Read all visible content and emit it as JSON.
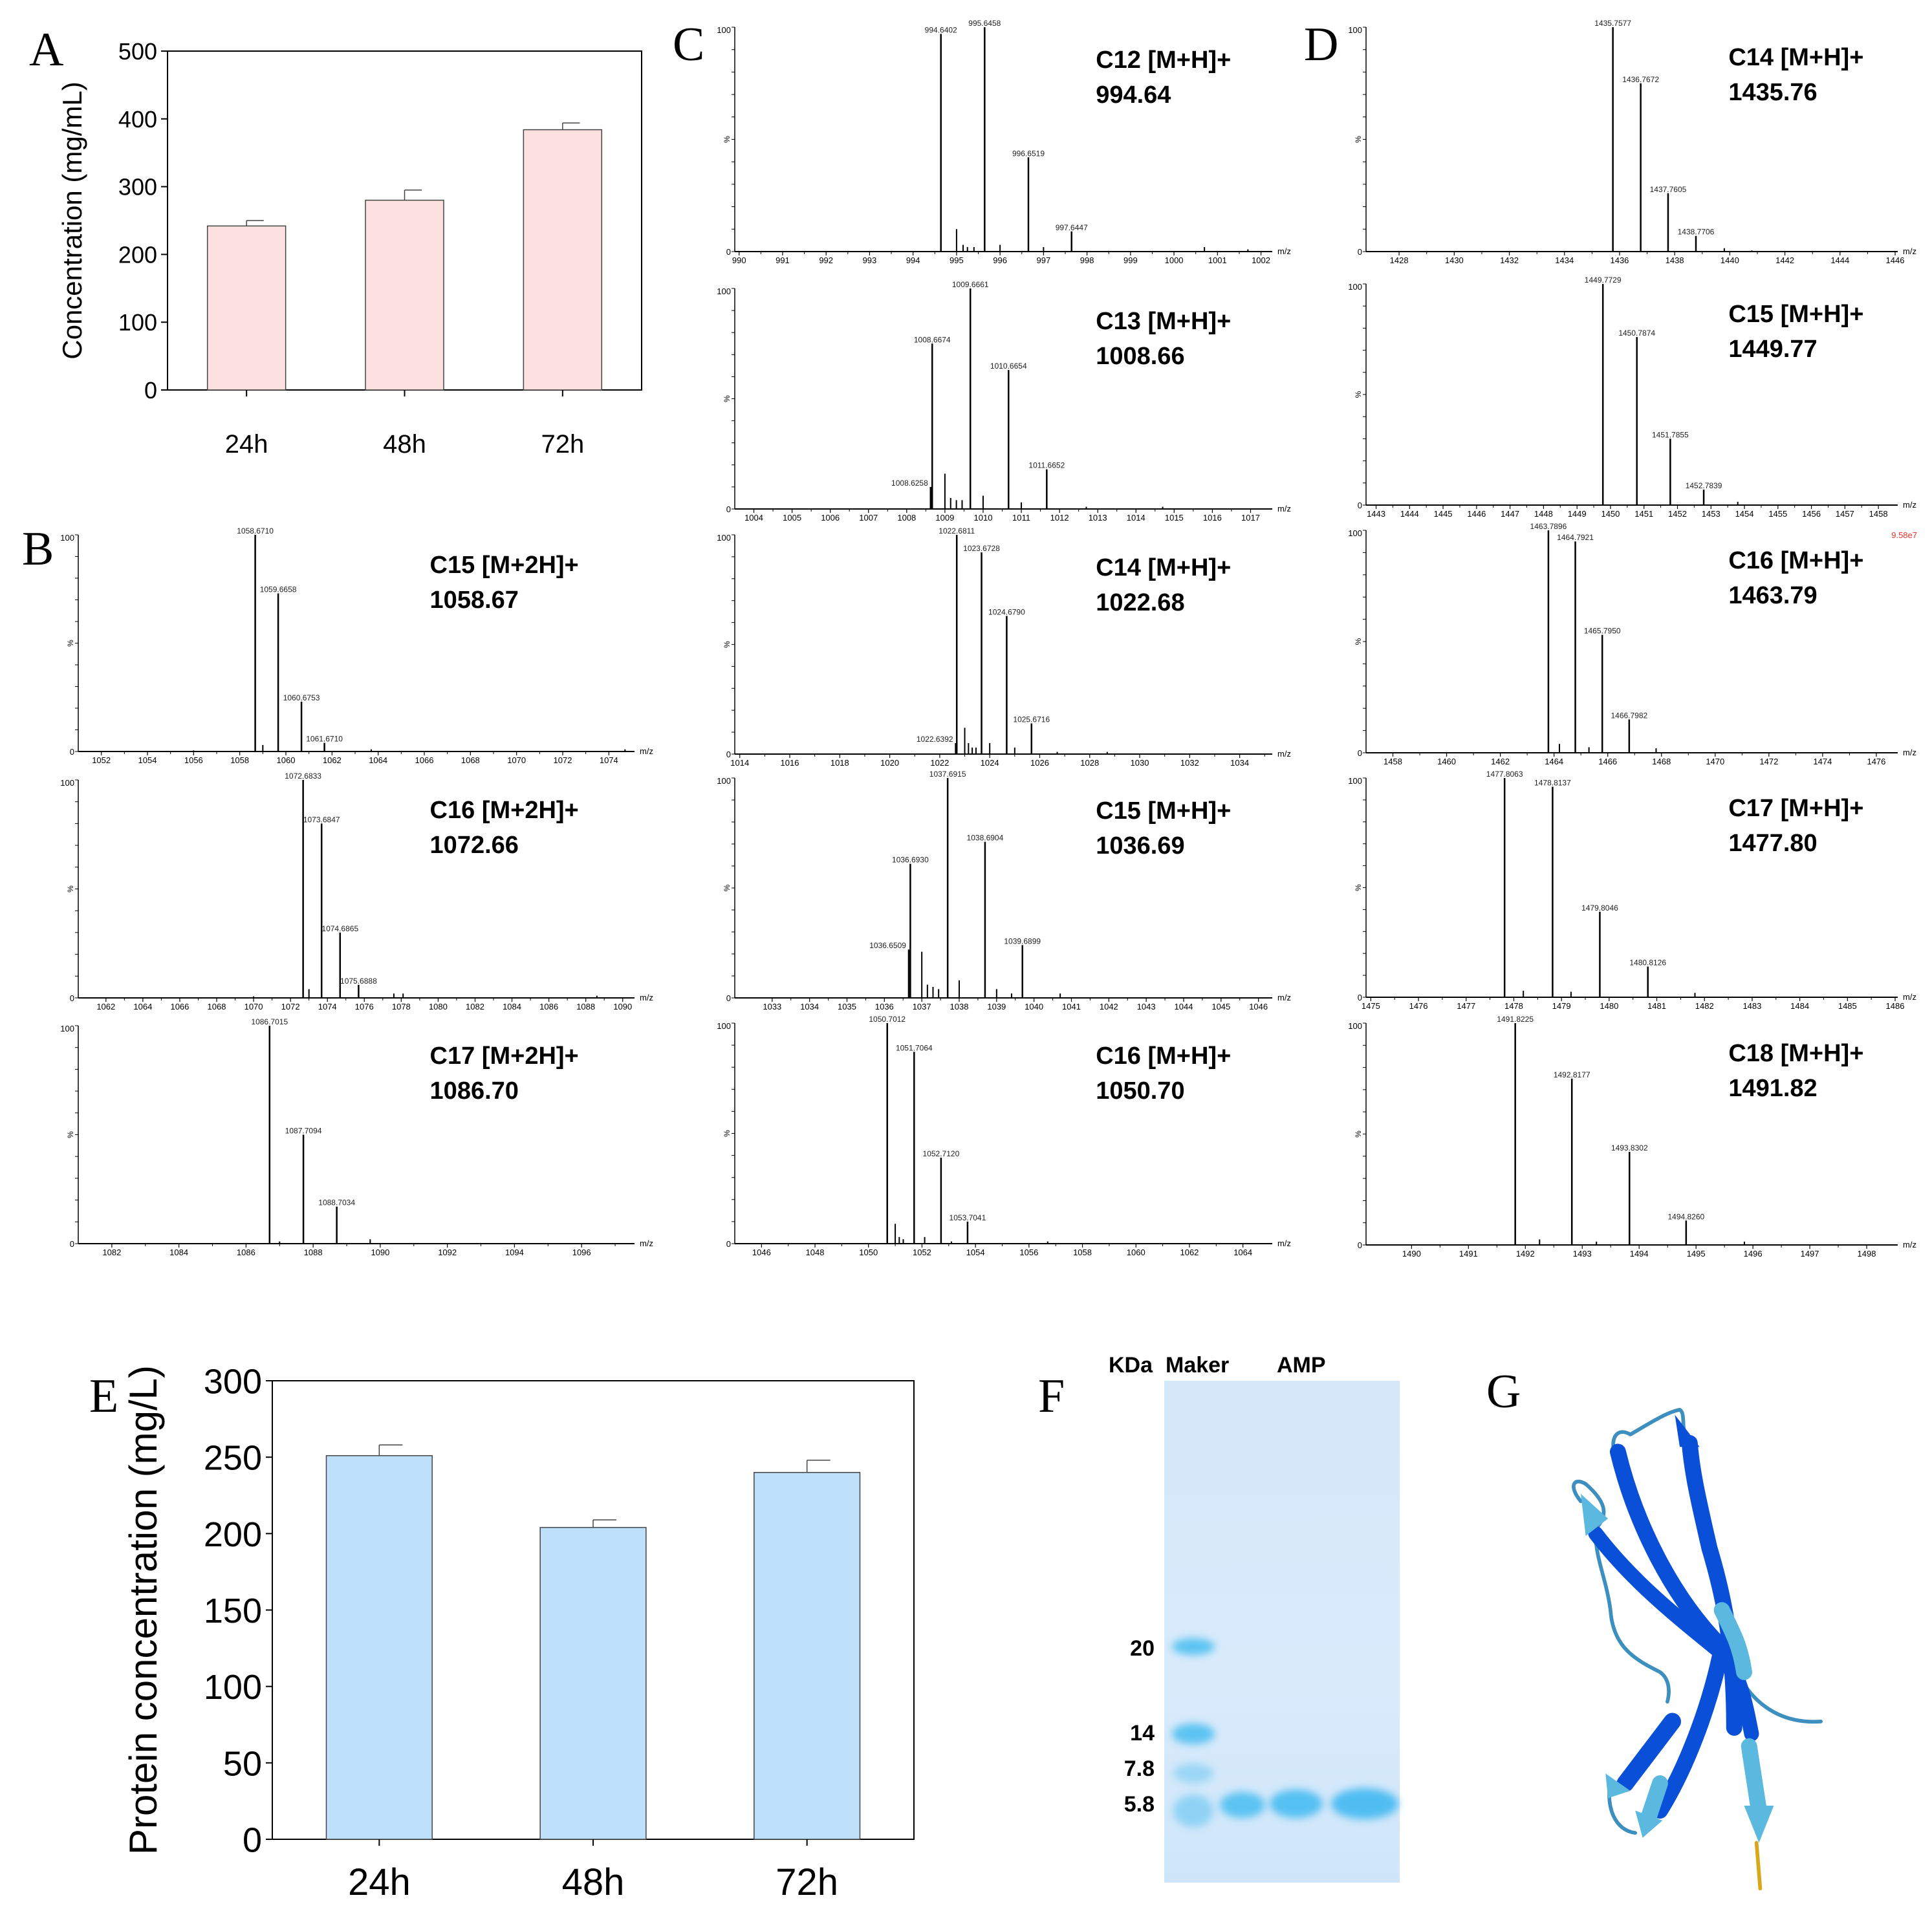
{
  "panel_labels": {
    "A": "A",
    "B": "B",
    "C": "C",
    "D": "D",
    "E": "E",
    "F": "F",
    "G": "G"
  },
  "gel": {
    "unit_label": "KDa",
    "lane_marker_label": "Maker",
    "lane_sample_label": "AMP",
    "marker_sizes": [
      "20",
      "14",
      "7.8",
      "5.8"
    ],
    "band_color": "#5cc3f2"
  },
  "structure": {
    "strand_color": "#0a4fd8",
    "strand_light_color": "#5bb8de",
    "coil_color": "#3d8fbf",
    "tail_color": "#d8a81a"
  },
  "chart_data": [
    {
      "panel": "A",
      "type": "bar",
      "title": "",
      "xlabel": "",
      "ylabel": "Concentration (mg/mL)",
      "categories": [
        "24h",
        "48h",
        "72h"
      ],
      "values": [
        242,
        280,
        384
      ],
      "errors": [
        8,
        15,
        10
      ],
      "ylim": [
        0,
        500
      ],
      "y_ticks": [
        "0",
        "100",
        "200",
        "300",
        "400",
        "500"
      ],
      "bar_color": "#fde0e0"
    },
    {
      "panel": "E",
      "type": "bar",
      "title": "",
      "xlabel": "",
      "ylabel": "Protein concentration (mg/L)",
      "categories": [
        "24h",
        "48h",
        "72h"
      ],
      "values": [
        251,
        204,
        240
      ],
      "errors": [
        7,
        5,
        8
      ],
      "ylim": [
        0,
        300
      ],
      "y_ticks": [
        "0",
        "50",
        "100",
        "150",
        "200",
        "250",
        "300"
      ],
      "bar_color": "#bfe0fb"
    },
    {
      "panel": "B",
      "type": "bar",
      "title": "C15 [M+2H]+",
      "value": "1058.67",
      "xlabel": "m/z",
      "ylabel": "%",
      "y_top": "100",
      "y_zero": "0",
      "xlim": [
        1051,
        1075
      ],
      "ylim": [
        0,
        100
      ],
      "x_ticks": [
        1052,
        1054,
        1056,
        1058,
        1060,
        1062,
        1064,
        1066,
        1068,
        1070,
        1072,
        1074
      ],
      "peaks": [
        {
          "mz": 1058.671,
          "intensity": 100,
          "label": "1058.6710"
        },
        {
          "mz": 1059.6658,
          "intensity": 73,
          "label": "1059.6658"
        },
        {
          "mz": 1060.6753,
          "intensity": 23,
          "label": "1060.6753"
        },
        {
          "mz": 1061.671,
          "intensity": 4,
          "label": "1061.6710"
        }
      ],
      "minor_peaks": [
        [
          1059.0,
          3
        ],
        [
          1063.7,
          1
        ],
        [
          1056.0,
          0.5
        ],
        [
          1074.7,
          1
        ]
      ]
    },
    {
      "panel": "B",
      "type": "bar",
      "title": "C16 [M+2H]+",
      "value": "1072.66",
      "xlabel": "m/z",
      "ylabel": "%",
      "y_top": "100",
      "y_zero": "0",
      "xlim": [
        1060.5,
        1090.5
      ],
      "ylim": [
        0,
        100
      ],
      "x_ticks": [
        1062,
        1064,
        1066,
        1068,
        1070,
        1072,
        1074,
        1076,
        1078,
        1080,
        1082,
        1084,
        1086,
        1088,
        1090
      ],
      "peaks": [
        {
          "mz": 1072.6833,
          "intensity": 100,
          "label": "1072.6833"
        },
        {
          "mz": 1073.6847,
          "intensity": 80,
          "label": "1073.6847"
        },
        {
          "mz": 1074.6865,
          "intensity": 30,
          "label": "1074.6865"
        },
        {
          "mz": 1075.6888,
          "intensity": 6,
          "label": "1075.6888"
        }
      ],
      "minor_peaks": [
        [
          1073.0,
          4
        ],
        [
          1077.6,
          2
        ],
        [
          1078.1,
          2
        ],
        [
          1070.0,
          0.7
        ],
        [
          1088.6,
          1
        ]
      ]
    },
    {
      "panel": "B",
      "type": "bar",
      "title": "C17 [M+2H]+",
      "value": "1086.70",
      "xlabel": "m/z",
      "ylabel": "%",
      "y_top": "100",
      "y_zero": "0",
      "xlim": [
        1081,
        1097.5
      ],
      "ylim": [
        0,
        100
      ],
      "x_ticks": [
        1082,
        1084,
        1086,
        1088,
        1090,
        1092,
        1094,
        1096
      ],
      "peaks": [
        {
          "mz": 1086.7015,
          "intensity": 100,
          "label": "1086.7015"
        },
        {
          "mz": 1087.7094,
          "intensity": 50,
          "label": "1087.7094"
        },
        {
          "mz": 1088.7034,
          "intensity": 17,
          "label": "1088.7034"
        }
      ],
      "minor_peaks": [
        [
          1089.7,
          2
        ],
        [
          1087.0,
          1
        ]
      ]
    },
    {
      "panel": "C",
      "type": "bar",
      "title": "C12 [M+H]+",
      "value": "994.64",
      "xlabel": "m/z",
      "ylabel": "%",
      "y_top": "100",
      "y_zero": "0",
      "xlim": [
        989.9,
        1002.2
      ],
      "ylim": [
        0,
        100
      ],
      "x_ticks": [
        990,
        991,
        992,
        993,
        994,
        995,
        996,
        997,
        998,
        999,
        1000,
        1001,
        1002
      ],
      "peaks": [
        {
          "mz": 994.6402,
          "intensity": 97,
          "label": "994.6402"
        },
        {
          "mz": 995.6458,
          "intensity": 100,
          "label": "995.6458"
        },
        {
          "mz": 996.6519,
          "intensity": 42,
          "label": "996.6519"
        },
        {
          "mz": 997.6447,
          "intensity": 9,
          "label": "997.6447"
        }
      ],
      "minor_peaks": [
        [
          995.0,
          10
        ],
        [
          995.15,
          3
        ],
        [
          995.25,
          2
        ],
        [
          995.4,
          2
        ],
        [
          996.0,
          3
        ],
        [
          997.0,
          2
        ],
        [
          1000.7,
          2
        ],
        [
          1001.7,
          1
        ]
      ]
    },
    {
      "panel": "C",
      "type": "bar",
      "title": "C13 [M+H]+",
      "value": "1008.66",
      "xlabel": "m/z",
      "ylabel": "%",
      "y_top": "100",
      "y_zero": "0",
      "xlim": [
        1003.5,
        1017.5
      ],
      "ylim": [
        0,
        100
      ],
      "x_ticks": [
        1004,
        1005,
        1006,
        1007,
        1008,
        1009,
        1010,
        1011,
        1012,
        1013,
        1014,
        1015,
        1016,
        1017
      ],
      "peaks": [
        {
          "mz": 1008.6674,
          "intensity": 75,
          "label": "1008.6674"
        },
        {
          "mz": 1009.6661,
          "intensity": 100,
          "label": "1009.6661"
        },
        {
          "mz": 1010.6654,
          "intensity": 63,
          "label": "1010.6654"
        },
        {
          "mz": 1011.6652,
          "intensity": 18,
          "label": "1011.6652"
        },
        {
          "mz": 1008.6258,
          "intensity": 10,
          "label": "1008.6258"
        }
      ],
      "minor_peaks": [
        [
          1009.0,
          16
        ],
        [
          1009.15,
          5
        ],
        [
          1009.3,
          4
        ],
        [
          1009.45,
          4
        ],
        [
          1010.0,
          6
        ],
        [
          1011.0,
          3
        ],
        [
          1012.7,
          1
        ],
        [
          1014.7,
          1
        ]
      ]
    },
    {
      "panel": "C",
      "type": "bar",
      "title": "C14 [M+H]+",
      "value": "1022.68",
      "xlabel": "m/z",
      "ylabel": "%",
      "y_top": "100",
      "y_zero": "0",
      "xlim": [
        1013.8,
        1035.2
      ],
      "ylim": [
        0,
        100
      ],
      "x_ticks": [
        1014,
        1016,
        1018,
        1020,
        1022,
        1024,
        1026,
        1028,
        1030,
        1032,
        1034
      ],
      "peaks": [
        {
          "mz": 1022.6811,
          "intensity": 100,
          "label": "1022.6811"
        },
        {
          "mz": 1023.6728,
          "intensity": 92,
          "label": "1023.6728"
        },
        {
          "mz": 1024.679,
          "intensity": 63,
          "label": "1024.6790"
        },
        {
          "mz": 1025.6716,
          "intensity": 14,
          "label": "1025.6716"
        },
        {
          "mz": 1022.6392,
          "intensity": 5,
          "label": "1022.6392"
        }
      ],
      "minor_peaks": [
        [
          1023.0,
          12
        ],
        [
          1023.15,
          5
        ],
        [
          1023.3,
          3
        ],
        [
          1023.45,
          3
        ],
        [
          1024.0,
          5
        ],
        [
          1025.0,
          3
        ],
        [
          1026.7,
          1
        ],
        [
          1028.7,
          1
        ]
      ]
    },
    {
      "panel": "C",
      "type": "bar",
      "title": "C15 [M+H]+",
      "value": "1036.69",
      "xlabel": "m/z",
      "ylabel": "%",
      "y_top": "100",
      "y_zero": "0",
      "xlim": [
        1032,
        1046.3
      ],
      "ylim": [
        0,
        100
      ],
      "x_ticks": [
        1033,
        1034,
        1035,
        1036,
        1037,
        1038,
        1039,
        1040,
        1041,
        1042,
        1043,
        1044,
        1045,
        1046
      ],
      "peaks": [
        {
          "mz": 1036.693,
          "intensity": 61,
          "label": "1036.6930"
        },
        {
          "mz": 1037.6915,
          "intensity": 100,
          "label": "1037.6915"
        },
        {
          "mz": 1038.6904,
          "intensity": 71,
          "label": "1038.6904"
        },
        {
          "mz": 1039.6899,
          "intensity": 24,
          "label": "1039.6899"
        },
        {
          "mz": 1036.6509,
          "intensity": 22,
          "label": "1036.6509"
        }
      ],
      "minor_peaks": [
        [
          1037.0,
          21
        ],
        [
          1037.15,
          6
        ],
        [
          1037.3,
          5
        ],
        [
          1037.45,
          4
        ],
        [
          1038.0,
          8
        ],
        [
          1039.0,
          4
        ],
        [
          1039.4,
          2
        ],
        [
          1040.7,
          2
        ]
      ]
    },
    {
      "panel": "C",
      "type": "bar",
      "title": "C16 [M+H]+",
      "value": "1050.70",
      "xlabel": "m/z",
      "ylabel": "%",
      "y_top": "100",
      "y_zero": "0",
      "xlim": [
        1045,
        1065
      ],
      "ylim": [
        0,
        100
      ],
      "x_ticks": [
        1046,
        1048,
        1050,
        1052,
        1054,
        1056,
        1058,
        1060,
        1062,
        1064
      ],
      "peaks": [
        {
          "mz": 1050.7012,
          "intensity": 100,
          "label": "1050.7012"
        },
        {
          "mz": 1051.7064,
          "intensity": 87,
          "label": "1051.7064"
        },
        {
          "mz": 1052.712,
          "intensity": 39,
          "label": "1052.7120"
        },
        {
          "mz": 1053.7041,
          "intensity": 10,
          "label": "1053.7041"
        }
      ],
      "minor_peaks": [
        [
          1051.0,
          9
        ],
        [
          1051.15,
          3
        ],
        [
          1051.3,
          2
        ],
        [
          1052.1,
          3
        ],
        [
          1053.1,
          1
        ],
        [
          1056.7,
          1
        ]
      ]
    },
    {
      "panel": "D",
      "type": "bar",
      "title": "C14 [M+H]+",
      "value": "1435.76",
      "xlabel": "m/z",
      "ylabel": "%",
      "y_top": "100",
      "y_zero": "0",
      "xlim": [
        1426.8,
        1446
      ],
      "ylim": [
        0,
        100
      ],
      "x_ticks": [
        1428,
        1430,
        1432,
        1434,
        1436,
        1438,
        1440,
        1442,
        1444,
        1446
      ],
      "peaks": [
        {
          "mz": 1435.7577,
          "intensity": 100,
          "label": "1435.7577"
        },
        {
          "mz": 1436.7672,
          "intensity": 75,
          "label": "1436.7672"
        },
        {
          "mz": 1437.7605,
          "intensity": 26,
          "label": "1437.7605"
        },
        {
          "mz": 1438.7706,
          "intensity": 7,
          "label": "1438.7706"
        }
      ],
      "minor_peaks": [
        [
          1439.8,
          1.5
        ],
        [
          1440.8,
          0.5
        ]
      ]
    },
    {
      "panel": "D",
      "type": "bar",
      "title": "C15 [M+H]+",
      "value": "1449.77",
      "xlabel": "m/z",
      "ylabel": "%",
      "y_top": "100",
      "y_zero": "0",
      "xlim": [
        1442.7,
        1458.5
      ],
      "ylim": [
        0,
        100
      ],
      "x_ticks": [
        1443,
        1444,
        1445,
        1446,
        1447,
        1448,
        1449,
        1450,
        1451,
        1452,
        1453,
        1454,
        1455,
        1456,
        1457,
        1458
      ],
      "peaks": [
        {
          "mz": 1449.7729,
          "intensity": 100,
          "label": "1449.7729"
        },
        {
          "mz": 1450.7874,
          "intensity": 76,
          "label": "1450.7874"
        },
        {
          "mz": 1451.7855,
          "intensity": 30,
          "label": "1451.7855"
        },
        {
          "mz": 1452.7839,
          "intensity": 7,
          "label": "1452.7839"
        }
      ],
      "minor_peaks": [
        [
          1453.8,
          1.5
        ]
      ]
    },
    {
      "panel": "D",
      "type": "bar",
      "title": "C16 [M+H]+",
      "value": "1463.79",
      "xlabel": "m/z",
      "ylabel": "%",
      "y_top": "100",
      "y_zero": "0",
      "intensity_max": "9.58e7",
      "xlim": [
        1457,
        1476.7
      ],
      "ylim": [
        0,
        100
      ],
      "x_ticks": [
        1458,
        1460,
        1462,
        1464,
        1466,
        1468,
        1470,
        1472,
        1474,
        1476
      ],
      "peaks": [
        {
          "mz": 1463.7896,
          "intensity": 100,
          "label": "1463.7896"
        },
        {
          "mz": 1464.7921,
          "intensity": 95,
          "label": "1464.7921"
        },
        {
          "mz": 1465.795,
          "intensity": 53,
          "label": "1465.7950"
        },
        {
          "mz": 1466.7982,
          "intensity": 15,
          "label": "1466.7982"
        }
      ],
      "minor_peaks": [
        [
          1464.2,
          4
        ],
        [
          1465.3,
          2.5
        ],
        [
          1467.8,
          2
        ]
      ]
    },
    {
      "panel": "D",
      "type": "bar",
      "title": "C17 [M+H]+",
      "value": "1477.80",
      "xlabel": "m/z",
      "ylabel": "%",
      "y_top": "100",
      "y_zero": "0",
      "xlim": [
        1474.9,
        1486
      ],
      "ylim": [
        0,
        100
      ],
      "x_ticks": [
        1475,
        1476,
        1477,
        1478,
        1479,
        1480,
        1481,
        1482,
        1483,
        1484,
        1485,
        1486
      ],
      "peaks": [
        {
          "mz": 1477.8063,
          "intensity": 100,
          "label": "1477.8063"
        },
        {
          "mz": 1478.8137,
          "intensity": 96,
          "label": "1478.8137"
        },
        {
          "mz": 1479.8046,
          "intensity": 39,
          "label": "1479.8046"
        },
        {
          "mz": 1480.8126,
          "intensity": 14,
          "label": "1480.8126"
        }
      ],
      "minor_peaks": [
        [
          1478.2,
          3
        ],
        [
          1479.2,
          2.5
        ],
        [
          1481.8,
          2
        ]
      ]
    },
    {
      "panel": "D",
      "type": "bar",
      "title": "C18 [M+H]+",
      "value": "1491.82",
      "xlabel": "m/z",
      "ylabel": "%",
      "y_top": "100",
      "y_zero": "0",
      "xlim": [
        1489.2,
        1498.5
      ],
      "ylim": [
        0,
        100
      ],
      "x_ticks": [
        1490,
        1491,
        1492,
        1493,
        1494,
        1495,
        1496,
        1497,
        1498
      ],
      "peaks": [
        {
          "mz": 1491.8225,
          "intensity": 100,
          "label": "1491.8225"
        },
        {
          "mz": 1492.8177,
          "intensity": 75,
          "label": "1492.8177"
        },
        {
          "mz": 1493.8302,
          "intensity": 42,
          "label": "1493.8302"
        },
        {
          "mz": 1494.826,
          "intensity": 11,
          "label": "1494.8260"
        }
      ],
      "minor_peaks": [
        [
          1492.25,
          2.5
        ],
        [
          1493.25,
          1.5
        ],
        [
          1495.85,
          1.5
        ]
      ]
    }
  ]
}
